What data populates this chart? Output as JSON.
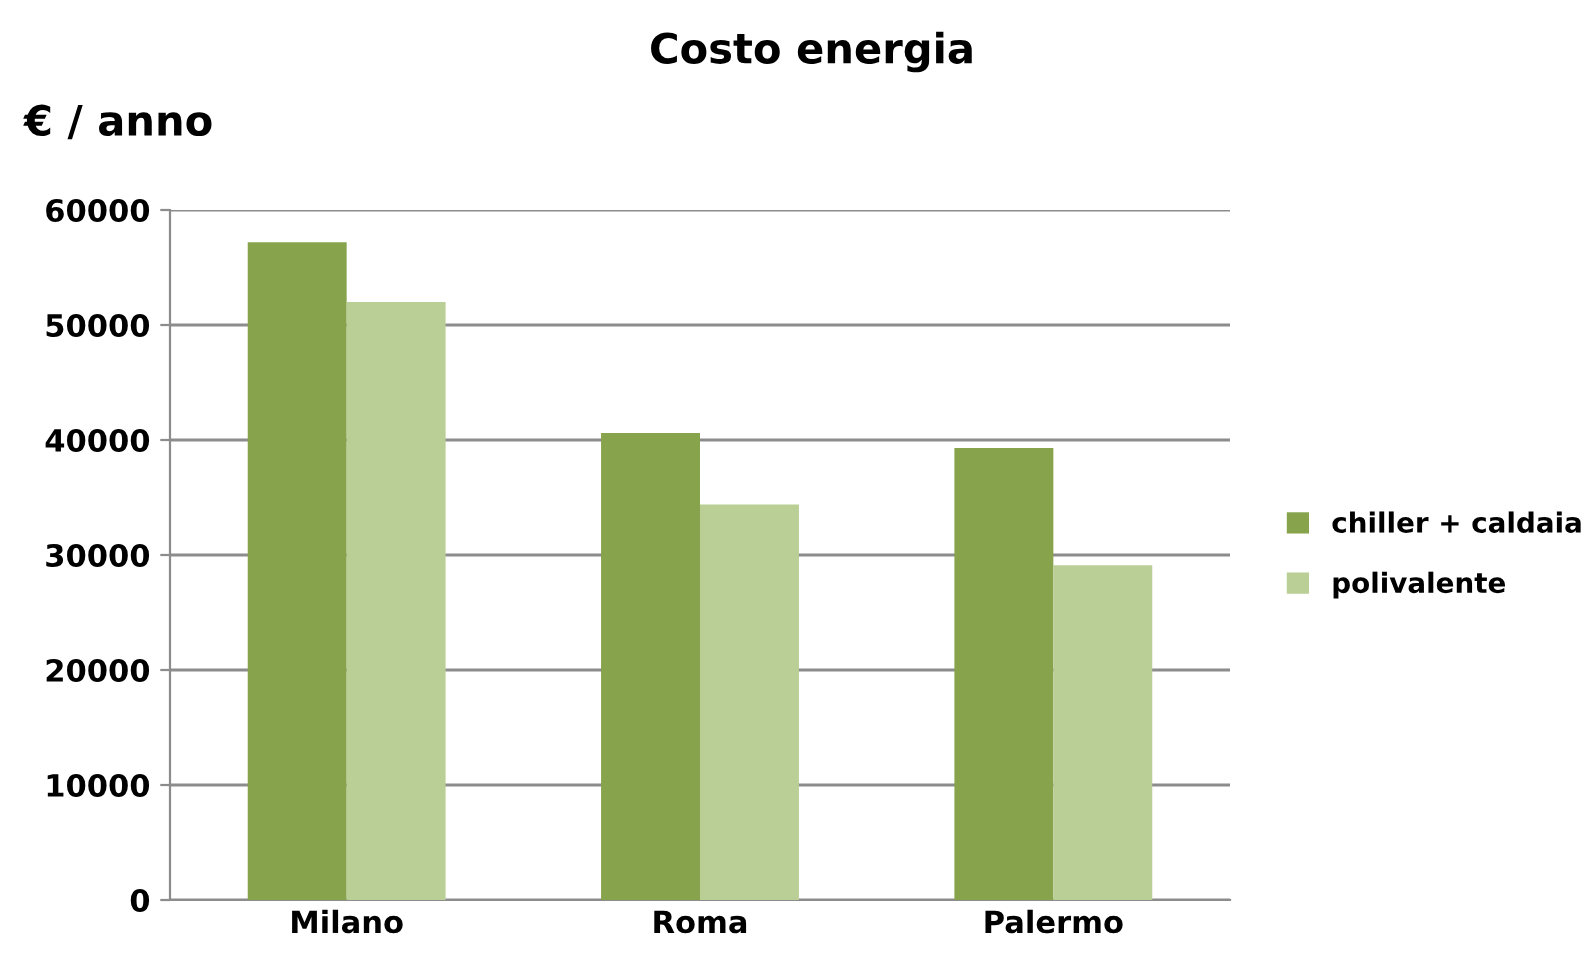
{
  "chart_data": {
    "type": "bar",
    "title": "Costo energia",
    "ylabel": "€ / anno",
    "categories": [
      "Milano",
      "Roma",
      "Palermo"
    ],
    "series": [
      {
        "name": "chiller + caldaia",
        "color": "#87a34c",
        "values": [
          57200,
          40600,
          39300
        ]
      },
      {
        "name": "polivalente",
        "color": "#b9cf96",
        "values": [
          52000,
          34400,
          29100
        ]
      }
    ],
    "ylim": [
      0,
      60000
    ],
    "yticks": [
      0,
      10000,
      20000,
      30000,
      40000,
      50000,
      60000
    ],
    "grid": "y",
    "legend": "right"
  }
}
